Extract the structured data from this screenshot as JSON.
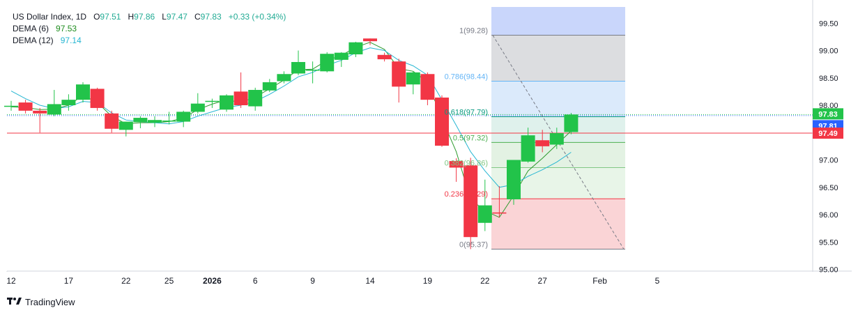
{
  "header": {
    "symbol": "US Dollar Index, 1D",
    "open_key": "O",
    "open": "97.51",
    "high_key": "H",
    "high": "97.86",
    "low_key": "L",
    "low": "97.47",
    "close_key": "C",
    "close": "97.83",
    "change": "+0.33 (+0.34%)"
  },
  "indicators": [
    {
      "label": "DEMA (6)",
      "value": "97.53",
      "color": "#1e8c1e"
    },
    {
      "label": "DEMA (12)",
      "value": "97.14",
      "color": "#26b6d2"
    }
  ],
  "brand": "TradingView",
  "colors": {
    "up": "#22c34a",
    "down": "#f23645",
    "dema6": "#2e9a2e",
    "dema12": "#26b6d2"
  },
  "chart_data": {
    "type": "candlestick",
    "y_axis": {
      "range": [
        95.0,
        99.5
      ],
      "ticks": [
        "95.00",
        "95.50",
        "96.00",
        "96.50",
        "97.00",
        "97.50",
        "98.00",
        "98.50",
        "99.00",
        "99.50"
      ]
    },
    "x_axis": {
      "tick_labels": [
        "12",
        "17",
        "22",
        "25",
        "2026",
        "6",
        "9",
        "14",
        "19",
        "22",
        "27",
        "Feb",
        "5"
      ]
    },
    "candles": [
      {
        "o": 97.99,
        "h": 98.08,
        "l": 97.9,
        "c": 97.99
      },
      {
        "o": 98.05,
        "h": 98.1,
        "l": 97.85,
        "c": 97.9
      },
      {
        "o": 97.9,
        "h": 97.95,
        "l": 97.5,
        "c": 97.85
      },
      {
        "o": 97.83,
        "h": 98.28,
        "l": 97.8,
        "c": 98.02
      },
      {
        "o": 98.0,
        "h": 98.2,
        "l": 97.9,
        "c": 98.1
      },
      {
        "o": 98.1,
        "h": 98.42,
        "l": 98.05,
        "c": 98.38
      },
      {
        "o": 98.3,
        "h": 98.32,
        "l": 97.9,
        "c": 97.95
      },
      {
        "o": 97.85,
        "h": 97.9,
        "l": 97.5,
        "c": 97.57
      },
      {
        "o": 97.55,
        "h": 97.7,
        "l": 97.43,
        "c": 97.7
      },
      {
        "o": 97.69,
        "h": 97.8,
        "l": 97.58,
        "c": 97.77
      },
      {
        "o": 97.68,
        "h": 97.8,
        "l": 97.6,
        "c": 97.73
      },
      {
        "o": 97.72,
        "h": 97.88,
        "l": 97.65,
        "c": 97.72
      },
      {
        "o": 97.7,
        "h": 97.9,
        "l": 97.6,
        "c": 97.88
      },
      {
        "o": 97.88,
        "h": 98.22,
        "l": 97.85,
        "c": 98.03
      },
      {
        "o": 98.08,
        "h": 98.12,
        "l": 97.95,
        "c": 98.08
      },
      {
        "o": 97.92,
        "h": 98.2,
        "l": 97.88,
        "c": 98.18
      },
      {
        "o": 98.25,
        "h": 98.6,
        "l": 97.95,
        "c": 98.0
      },
      {
        "o": 97.98,
        "h": 98.32,
        "l": 97.9,
        "c": 98.28
      },
      {
        "o": 98.27,
        "h": 98.48,
        "l": 98.24,
        "c": 98.42
      },
      {
        "o": 98.44,
        "h": 98.62,
        "l": 98.4,
        "c": 98.57
      },
      {
        "o": 98.58,
        "h": 99.0,
        "l": 98.55,
        "c": 98.79
      },
      {
        "o": 98.64,
        "h": 98.8,
        "l": 98.4,
        "c": 98.65
      },
      {
        "o": 98.62,
        "h": 98.97,
        "l": 98.6,
        "c": 98.94
      },
      {
        "o": 98.83,
        "h": 98.97,
        "l": 98.7,
        "c": 98.96
      },
      {
        "o": 98.93,
        "h": 99.16,
        "l": 98.88,
        "c": 99.15
      },
      {
        "o": 99.22,
        "h": 99.22,
        "l": 99.1,
        "c": 99.17
      },
      {
        "o": 98.92,
        "h": 98.96,
        "l": 98.8,
        "c": 98.84
      },
      {
        "o": 98.8,
        "h": 98.85,
        "l": 98.05,
        "c": 98.34
      },
      {
        "o": 98.38,
        "h": 98.62,
        "l": 98.2,
        "c": 98.6
      },
      {
        "o": 98.57,
        "h": 98.6,
        "l": 98.0,
        "c": 98.1
      },
      {
        "o": 98.14,
        "h": 98.18,
        "l": 97.24,
        "c": 97.26
      },
      {
        "o": 96.98,
        "h": 97.03,
        "l": 96.6,
        "c": 96.86
      },
      {
        "o": 96.9,
        "h": 97.04,
        "l": 95.37,
        "c": 95.59
      },
      {
        "o": 95.85,
        "h": 96.64,
        "l": 95.7,
        "c": 96.17
      },
      {
        "o": 96.04,
        "h": 96.52,
        "l": 95.95,
        "c": 96.02
      },
      {
        "o": 96.28,
        "h": 97.0,
        "l": 96.18,
        "c": 97.0
      },
      {
        "o": 96.97,
        "h": 97.59,
        "l": 96.95,
        "c": 97.45
      },
      {
        "o": 97.36,
        "h": 97.55,
        "l": 97.14,
        "c": 97.25
      },
      {
        "o": 97.28,
        "h": 97.59,
        "l": 97.2,
        "c": 97.49
      },
      {
        "o": 97.51,
        "h": 97.86,
        "l": 97.47,
        "c": 97.83
      }
    ],
    "series": [
      {
        "name": "DEMA (6)",
        "values": [
          97.97,
          97.96,
          97.92,
          97.93,
          98.0,
          98.18,
          98.05,
          97.8,
          97.66,
          97.68,
          97.68,
          97.7,
          97.77,
          97.92,
          98.02,
          98.1,
          98.05,
          98.15,
          98.3,
          98.46,
          98.65,
          98.66,
          98.82,
          98.91,
          99.06,
          99.15,
          99.02,
          98.67,
          98.62,
          98.42,
          97.76,
          97.15,
          96.28,
          96.07,
          95.95,
          96.35,
          96.8,
          97.03,
          97.28,
          97.53
        ]
      },
      {
        "name": "DEMA (12)",
        "values": [
          98.26,
          98.12,
          98.0,
          97.94,
          97.97,
          98.07,
          98.05,
          97.86,
          97.73,
          97.7,
          97.68,
          97.66,
          97.7,
          97.8,
          97.88,
          97.96,
          98.0,
          98.07,
          98.2,
          98.35,
          98.52,
          98.6,
          98.73,
          98.82,
          98.96,
          99.05,
          99.0,
          98.82,
          98.72,
          98.55,
          98.1,
          97.63,
          97.15,
          96.8,
          96.5,
          96.55,
          96.7,
          96.82,
          96.96,
          97.14
        ]
      }
    ],
    "fibonacci": {
      "levels": [
        {
          "ratio": "1",
          "price": 99.28,
          "label": "1(99.28)",
          "color": "#787b86",
          "fill": "#dcdde0"
        },
        {
          "ratio": "0.786",
          "price": 98.44,
          "label": "0.786(98.44)",
          "color": "#64b5f6",
          "fill": "#dbeafb"
        },
        {
          "ratio": "0.618",
          "price": 97.79,
          "label": "0.618(97.79)",
          "color": "#089981",
          "fill": "#dff1ec"
        },
        {
          "ratio": "0.5",
          "price": 97.32,
          "label": "0.5(97.32)",
          "color": "#4caf50",
          "fill": "#e3f2e3"
        },
        {
          "ratio": "0.382",
          "price": 96.86,
          "label": "0.382(96.86)",
          "color": "#81c784",
          "fill": "#e8f5e8"
        },
        {
          "ratio": "0.236",
          "price": 96.29,
          "label": "0.236(96.29)",
          "color": "#f23645",
          "fill": "#fad4d6"
        },
        {
          "ratio": "0",
          "price": 95.37,
          "label": "0(95.37)",
          "color": "#787b86",
          "fill": null
        }
      ]
    },
    "horizontal_lines": [
      {
        "price": 97.81,
        "color": "#2962ff",
        "style": "dotted"
      },
      {
        "price": 97.49,
        "color": "#f23645",
        "style": "solid"
      }
    ],
    "price_labels": [
      {
        "price": 97.83,
        "text": "97.83",
        "bg": "#22c34a"
      },
      {
        "price": 97.81,
        "text": "97.81",
        "bg": "#2962ff"
      },
      {
        "price": 97.49,
        "text": "97.49",
        "bg": "#f23645"
      }
    ]
  }
}
